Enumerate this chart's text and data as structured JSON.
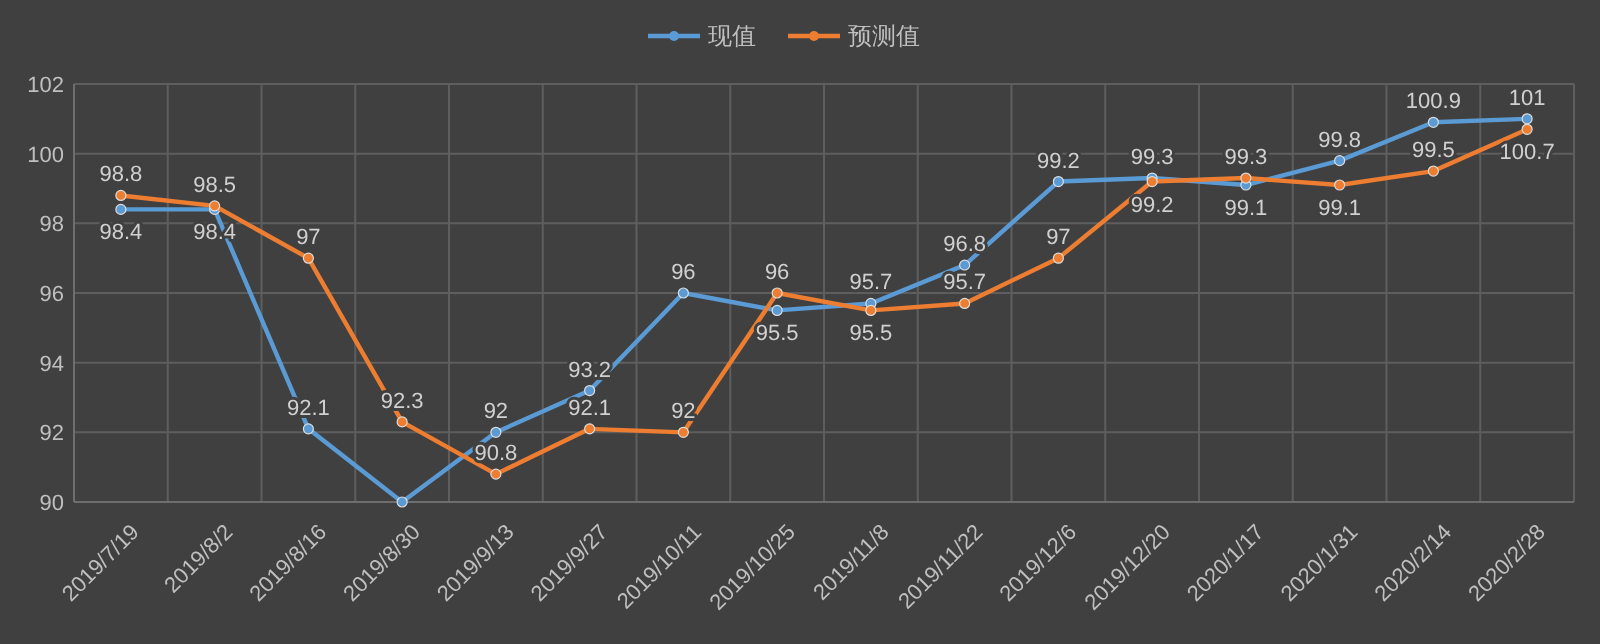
{
  "chart_data": {
    "type": "line",
    "categories": [
      "2019/7/19",
      "2019/8/2",
      "2019/8/16",
      "2019/8/30",
      "2019/9/13",
      "2019/9/27",
      "2019/10/11",
      "2019/10/25",
      "2019/11/8",
      "2019/11/22",
      "2019/12/6",
      "2019/12/20",
      "2020/1/17",
      "2020/1/31",
      "2020/2/14",
      "2020/2/28"
    ],
    "series": [
      {
        "name": "现值",
        "color": "#5b9bd5",
        "values": [
          98.4,
          98.4,
          92.1,
          90,
          92,
          93.2,
          96,
          95.5,
          95.7,
          96.8,
          99.2,
          99.3,
          99.1,
          99.8,
          100.9,
          101
        ],
        "value_labels": [
          "98.4",
          "98.4",
          "92.1",
          null,
          "92",
          "93.2",
          "96",
          "95.5",
          "95.7",
          "96.8",
          "99.2",
          "99.3",
          "99.1",
          "99.8",
          "100.9",
          "101"
        ]
      },
      {
        "name": "预测值",
        "color": "#ed7d31",
        "values": [
          98.8,
          98.5,
          97,
          92.3,
          90.8,
          92.1,
          92,
          96,
          95.5,
          95.7,
          97,
          99.2,
          99.3,
          99.1,
          99.5,
          100.7
        ],
        "value_labels": [
          "98.8",
          "98.5",
          "97",
          "92.3",
          "90.8",
          "92.1",
          "92",
          "96",
          "95.5",
          "95.7",
          "97",
          "99.2",
          "99.3",
          "99.1",
          "99.5",
          "100.7"
        ]
      }
    ],
    "ylim": [
      90,
      102
    ],
    "yticks": [
      90,
      92,
      94,
      96,
      98,
      100,
      102
    ],
    "grid": true,
    "legend": "top",
    "marker": "circle",
    "line_style": "solid"
  }
}
